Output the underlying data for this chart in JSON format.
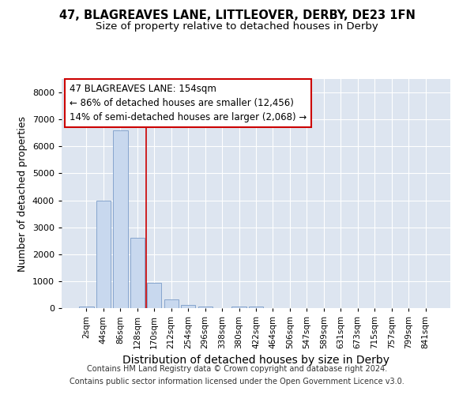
{
  "title1": "47, BLAGREAVES LANE, LITTLEOVER, DERBY, DE23 1FN",
  "title2": "Size of property relative to detached houses in Derby",
  "xlabel": "Distribution of detached houses by size in Derby",
  "ylabel": "Number of detached properties",
  "footnote1": "Contains HM Land Registry data © Crown copyright and database right 2024.",
  "footnote2": "Contains public sector information licensed under the Open Government Licence v3.0.",
  "bar_labels": [
    "2sqm",
    "44sqm",
    "86sqm",
    "128sqm",
    "170sqm",
    "212sqm",
    "254sqm",
    "296sqm",
    "338sqm",
    "380sqm",
    "422sqm",
    "464sqm",
    "506sqm",
    "547sqm",
    "589sqm",
    "631sqm",
    "673sqm",
    "715sqm",
    "757sqm",
    "799sqm",
    "841sqm"
  ],
  "bar_values": [
    50,
    4000,
    6600,
    2600,
    950,
    330,
    130,
    60,
    0,
    50,
    60,
    0,
    0,
    0,
    0,
    0,
    0,
    0,
    0,
    0,
    0
  ],
  "bar_color": "#c8d8ee",
  "bar_edge_color": "#7a9cc8",
  "bg_color": "#ffffff",
  "plot_bg_color": "#dde5f0",
  "vline_x": 3.5,
  "vline_color": "#cc0000",
  "annotation_line1": "47 BLAGREAVES LANE: 154sqm",
  "annotation_line2": "← 86% of detached houses are smaller (12,456)",
  "annotation_line3": "14% of semi-detached houses are larger (2,068) →",
  "annotation_box_color": "#cc0000",
  "ylim": [
    0,
    8500
  ],
  "yticks": [
    0,
    1000,
    2000,
    3000,
    4000,
    5000,
    6000,
    7000,
    8000
  ],
  "grid_color": "#ffffff",
  "title1_fontsize": 10.5,
  "title2_fontsize": 9.5,
  "annotation_fontsize": 8.5,
  "xlabel_fontsize": 10,
  "ylabel_fontsize": 9,
  "footnote_fontsize": 7
}
